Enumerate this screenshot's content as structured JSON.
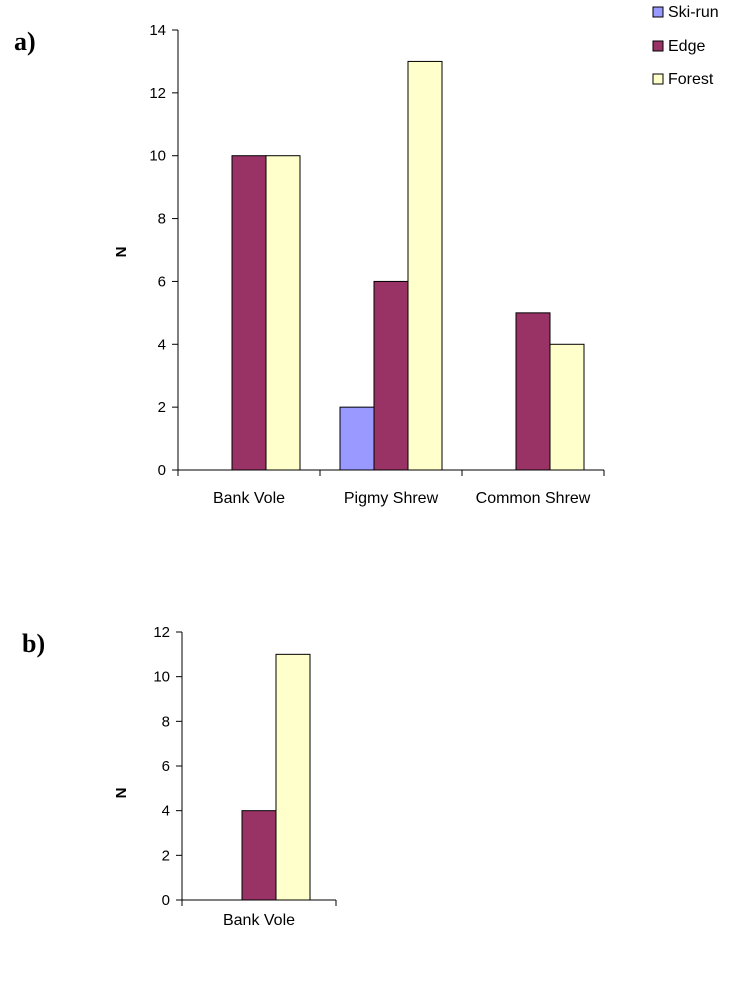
{
  "legend": [
    {
      "label": "Ski-run",
      "color": "#9999ff"
    },
    {
      "label": "Edge",
      "color": "#993366"
    },
    {
      "label": "Forest",
      "color": "#ffffcc"
    }
  ],
  "chart_data": [
    {
      "panel": "a)",
      "type": "bar",
      "ylabel": "N",
      "ylim": [
        0,
        14
      ],
      "yticks": [
        0,
        2,
        4,
        6,
        8,
        10,
        12,
        14
      ],
      "categories": [
        "Bank Vole",
        "Pigmy Shrew",
        "Common Shrew"
      ],
      "series": [
        {
          "name": "Ski-run",
          "values": [
            0,
            2,
            0
          ]
        },
        {
          "name": "Edge",
          "values": [
            10,
            6,
            5
          ]
        },
        {
          "name": "Forest",
          "values": [
            10,
            13,
            4
          ]
        }
      ],
      "legend_position": "top-right",
      "grid": false
    },
    {
      "panel": "b)",
      "type": "bar",
      "ylabel": "N",
      "ylim": [
        0,
        12
      ],
      "yticks": [
        0,
        2,
        4,
        6,
        8,
        10,
        12
      ],
      "categories": [
        "Bank Vole"
      ],
      "series": [
        {
          "name": "Ski-run",
          "values": [
            0
          ]
        },
        {
          "name": "Edge",
          "values": [
            4
          ]
        },
        {
          "name": "Forest",
          "values": [
            11
          ]
        }
      ],
      "grid": false
    }
  ]
}
